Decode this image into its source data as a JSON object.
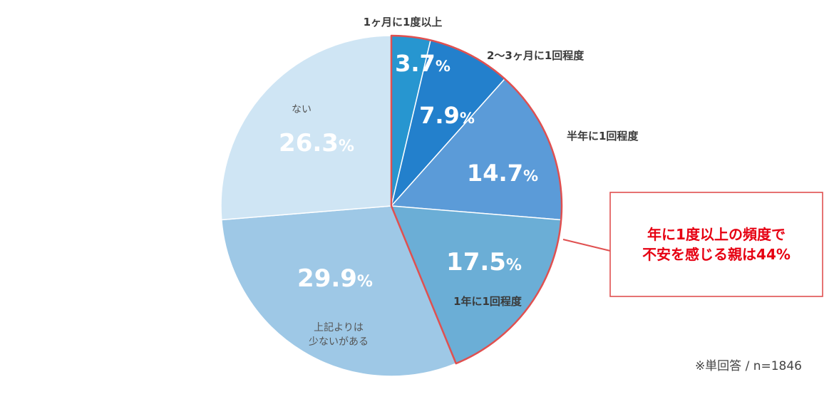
{
  "chart_data": {
    "type": "pie",
    "title": "",
    "slices": [
      {
        "label": "1ヶ月に1度以上",
        "value": 3.7,
        "pct_num": "3.7",
        "color": "#2796d0"
      },
      {
        "label": "2〜3ヶ月に1回程度",
        "value": 7.9,
        "pct_num": "7.9",
        "color": "#2380cc"
      },
      {
        "label": "半年に1回程度",
        "value": 14.7,
        "pct_num": "14.7",
        "color": "#5b9bd8"
      },
      {
        "label": "1年に1回程度",
        "value": 17.5,
        "pct_num": "17.5",
        "color": "#6baed6"
      },
      {
        "label_lines": [
          "上記よりは",
          "少ないがある"
        ],
        "value": 29.9,
        "pct_num": "29.9",
        "color": "#9ec8e6"
      },
      {
        "label": "ない",
        "value": 26.3,
        "pct_num": "26.3",
        "color": "#cfe5f4"
      }
    ],
    "unit": "%",
    "highlight_slices": [
      0,
      1,
      2,
      3
    ],
    "callout": {
      "lines": [
        "年に1度以上の頻度で",
        "不安を感じる親は44%"
      ],
      "color": "#e60012"
    },
    "note": "※単回答 / n=1846"
  }
}
